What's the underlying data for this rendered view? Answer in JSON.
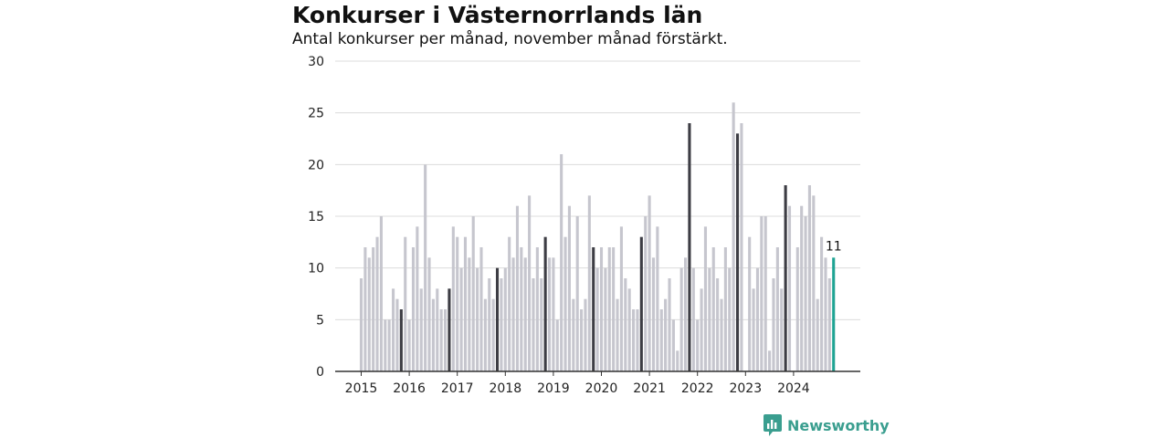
{
  "title": "Konkurser i Västernorrlands län",
  "subtitle": "Antal konkurser per månad, november månad förstärkt.",
  "brand": {
    "name": "Newsworthy",
    "icon": "newsworthy-logo-icon",
    "color": "#3a9e8f"
  },
  "colors": {
    "bar": "#c6c6ce",
    "highlight": "#3d3d44",
    "latest": "#1fa393",
    "grid": "#dcdcdc",
    "axis": "#333333"
  },
  "chart_data": {
    "type": "bar",
    "ylim": [
      0,
      30
    ],
    "yticks": [
      0,
      5,
      10,
      15,
      20,
      25,
      30
    ],
    "xticks": [
      "2015",
      "2016",
      "2017",
      "2018",
      "2019",
      "2020",
      "2021",
      "2022",
      "2023",
      "2024"
    ],
    "start": "2015-01",
    "highlight_month": "november",
    "last_value_label": "11",
    "values": [
      9,
      12,
      11,
      12,
      13,
      15,
      5,
      5,
      8,
      7,
      6,
      13,
      5,
      12,
      14,
      8,
      20,
      11,
      7,
      8,
      6,
      6,
      8,
      14,
      13,
      10,
      13,
      11,
      15,
      10,
      12,
      7,
      9,
      7,
      10,
      9,
      10,
      13,
      11,
      16,
      12,
      11,
      17,
      9,
      12,
      9,
      13,
      11,
      11,
      5,
      21,
      13,
      16,
      7,
      15,
      6,
      7,
      17,
      12,
      10,
      12,
      10,
      12,
      12,
      7,
      14,
      9,
      8,
      6,
      6,
      13,
      15,
      17,
      11,
      14,
      6,
      7,
      9,
      5,
      2,
      10,
      11,
      24,
      10,
      5,
      8,
      14,
      10,
      12,
      9,
      7,
      12,
      10,
      26,
      23,
      24,
      0,
      13,
      8,
      10,
      15,
      15,
      2,
      9,
      12,
      8,
      18,
      16,
      0,
      12,
      16,
      15,
      18,
      17,
      7,
      13,
      11,
      9,
      11
    ]
  }
}
